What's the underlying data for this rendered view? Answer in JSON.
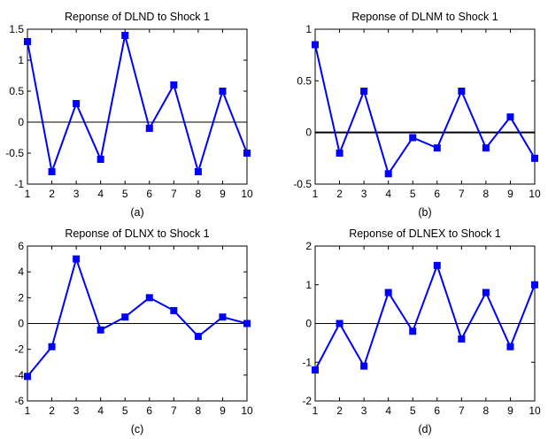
{
  "chart_data": [
    {
      "type": "line",
      "title": "Reponse of DLND to Shock 1",
      "caption": "(a)",
      "x": [
        1,
        2,
        3,
        4,
        5,
        6,
        7,
        8,
        9,
        10
      ],
      "y": [
        1.3,
        -0.8,
        0.3,
        -0.6,
        1.4,
        -0.1,
        0.6,
        -0.8,
        0.5,
        -0.5
      ],
      "xlim": [
        1,
        10
      ],
      "ylim": [
        -1,
        1.5
      ],
      "xticks": [
        "1",
        "2",
        "3",
        "4",
        "5",
        "6",
        "7",
        "8",
        "9",
        "10"
      ],
      "yticks": [
        "1.5",
        "1",
        "0.5",
        "0",
        "-0.5",
        "-1"
      ],
      "ytick_values": [
        1.5,
        1,
        0.5,
        0,
        -0.5,
        -1
      ],
      "zero_line": true,
      "color": "#0000ff"
    },
    {
      "type": "line",
      "title": "Reponse of DLNM to Shock 1",
      "caption": "(b)",
      "x": [
        1,
        2,
        3,
        4,
        5,
        6,
        7,
        8,
        9,
        10
      ],
      "y": [
        0.85,
        -0.2,
        0.4,
        -0.4,
        -0.05,
        -0.15,
        0.4,
        -0.15,
        0.15,
        -0.25
      ],
      "xlim": [
        1,
        10
      ],
      "ylim": [
        -0.5,
        1
      ],
      "xticks": [
        "1",
        "2",
        "3",
        "4",
        "5",
        "6",
        "7",
        "8",
        "9",
        "10"
      ],
      "yticks": [
        "1",
        "0.5",
        "0",
        "-0.5"
      ],
      "ytick_values": [
        1,
        0.5,
        0,
        -0.5
      ],
      "zero_line": true,
      "color": "#0000ff"
    },
    {
      "type": "line",
      "title": "Reponse of DLNX to Shock 1",
      "caption": "(c)",
      "x": [
        1,
        2,
        3,
        4,
        5,
        6,
        7,
        8,
        9,
        10
      ],
      "y": [
        -4.1,
        -1.8,
        5.0,
        -0.5,
        0.5,
        2.0,
        1.0,
        -1.0,
        0.5,
        0.0
      ],
      "xlim": [
        1,
        10
      ],
      "ylim": [
        -6,
        6
      ],
      "xticks": [
        "1",
        "2",
        "3",
        "4",
        "5",
        "6",
        "7",
        "8",
        "9",
        "10"
      ],
      "yticks": [
        "6",
        "4",
        "2",
        "0",
        "-2",
        "-4",
        "-6"
      ],
      "ytick_values": [
        6,
        4,
        2,
        0,
        -2,
        -4,
        -6
      ],
      "zero_line": true,
      "color": "#0000ff"
    },
    {
      "type": "line",
      "title": "Reponse of DLNEX to Shock 1",
      "caption": "(d)",
      "x": [
        1,
        2,
        3,
        4,
        5,
        6,
        7,
        8,
        9,
        10
      ],
      "y": [
        -1.2,
        0.0,
        -1.1,
        0.8,
        -0.2,
        1.5,
        -0.4,
        0.8,
        -0.6,
        1.0
      ],
      "xlim": [
        1,
        10
      ],
      "ylim": [
        -2,
        2
      ],
      "xticks": [
        "1",
        "2",
        "3",
        "4",
        "5",
        "6",
        "7",
        "8",
        "9",
        "10"
      ],
      "yticks": [
        "2",
        "1",
        "0",
        "-1",
        "-2"
      ],
      "ytick_values": [
        2,
        1,
        0,
        -1,
        -2
      ],
      "zero_line": true,
      "color": "#0000ff"
    }
  ]
}
